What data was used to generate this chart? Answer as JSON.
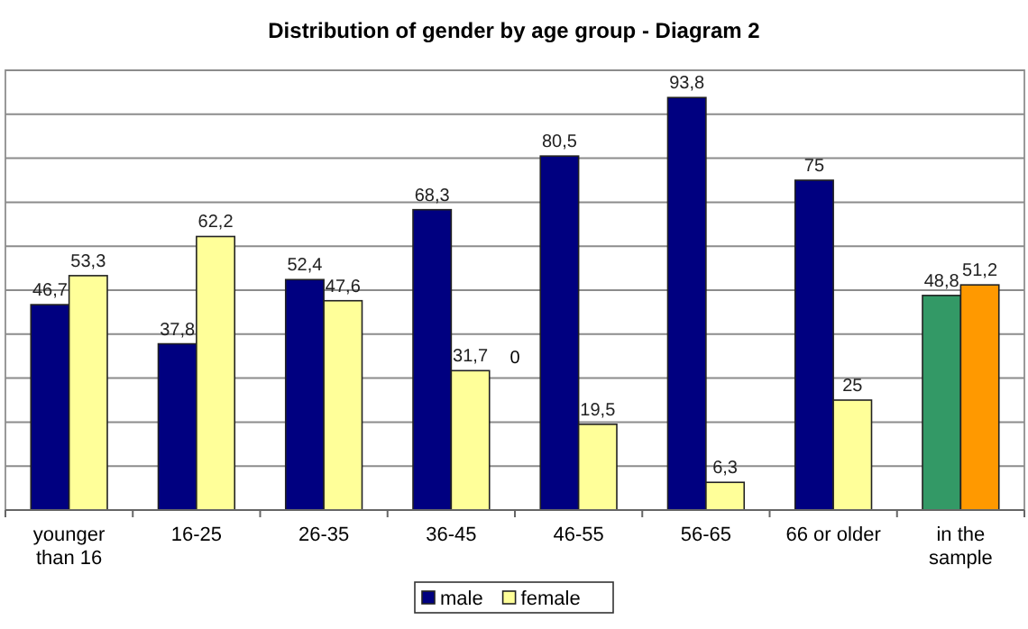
{
  "chart_data": {
    "type": "bar",
    "title": "Distribution of gender by age group  - Diagram 2",
    "categories": [
      "younger than 16",
      "16-25",
      "26-35",
      "36-45",
      "46-55",
      "56-65",
      "66 or older",
      "in the sample"
    ],
    "series": [
      {
        "name": "male",
        "color": "#000080",
        "colors": [
          "#000080",
          "#000080",
          "#000080",
          "#000080",
          "#000080",
          "#000080",
          "#000080",
          "#339966"
        ],
        "values": [
          46.7,
          37.8,
          52.4,
          68.3,
          80.5,
          93.8,
          75,
          48.8
        ],
        "value_labels": [
          "46,7",
          "37,8",
          "52,4",
          "68,3",
          "80,5",
          "93,8",
          "75",
          "48,8"
        ]
      },
      {
        "name": "female",
        "color": "#ffff99",
        "colors": [
          "#ffff99",
          "#ffff99",
          "#ffff99",
          "#ffff99",
          "#ffff99",
          "#ffff99",
          "#ffff99",
          "#ff9900"
        ],
        "values": [
          53.3,
          62.2,
          47.6,
          31.7,
          19.5,
          6.3,
          25,
          51.2
        ],
        "value_labels": [
          "53,3",
          "62,2",
          "47,6",
          "31,7",
          "19,5",
          "6,3",
          "25",
          "51,2"
        ]
      }
    ],
    "ylim": [
      0,
      100
    ],
    "yticks": [
      {
        "value": 0,
        "label": null
      },
      {
        "value": 10,
        "label": null
      },
      {
        "value": 20,
        "label": null
      },
      {
        "value": 30,
        "label": null
      },
      {
        "value": 40,
        "label": null
      },
      {
        "value": 50,
        "label": null
      },
      {
        "value": 60,
        "label": null
      },
      {
        "value": 70,
        "label": null
      },
      {
        "value": 80,
        "label": null
      },
      {
        "value": 90,
        "label": null
      },
      {
        "value": 100,
        "label": null
      }
    ],
    "tick_labels": "x",
    "grid": "y",
    "legend": "bottom",
    "annotations": [
      "0"
    ]
  }
}
